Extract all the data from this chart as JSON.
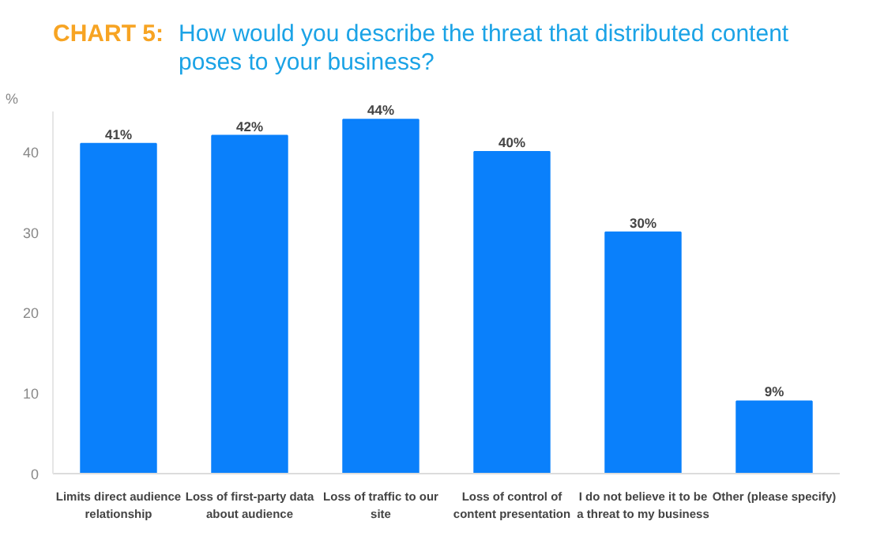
{
  "chart_data": {
    "type": "bar",
    "title": "CHART 5: How would you describe the threat that distributed content poses to your business?",
    "ylabel": "%",
    "categories": [
      "Limits direct audience relationship",
      "Loss of first-party data about audience",
      "Loss of traffic to our site",
      "Loss of control of content presentation",
      "I do not believe it to be a threat to my business",
      "Other (please specify)"
    ],
    "values": [
      41,
      42,
      44,
      40,
      30,
      9
    ],
    "color": "#0a80fb",
    "value_labels": [
      "41%",
      "42%",
      "44%",
      "40%",
      "30%",
      "9%"
    ],
    "ylim": [
      0,
      45
    ],
    "yticks": [
      0,
      10,
      20,
      30,
      40
    ],
    "grid": false
  }
}
